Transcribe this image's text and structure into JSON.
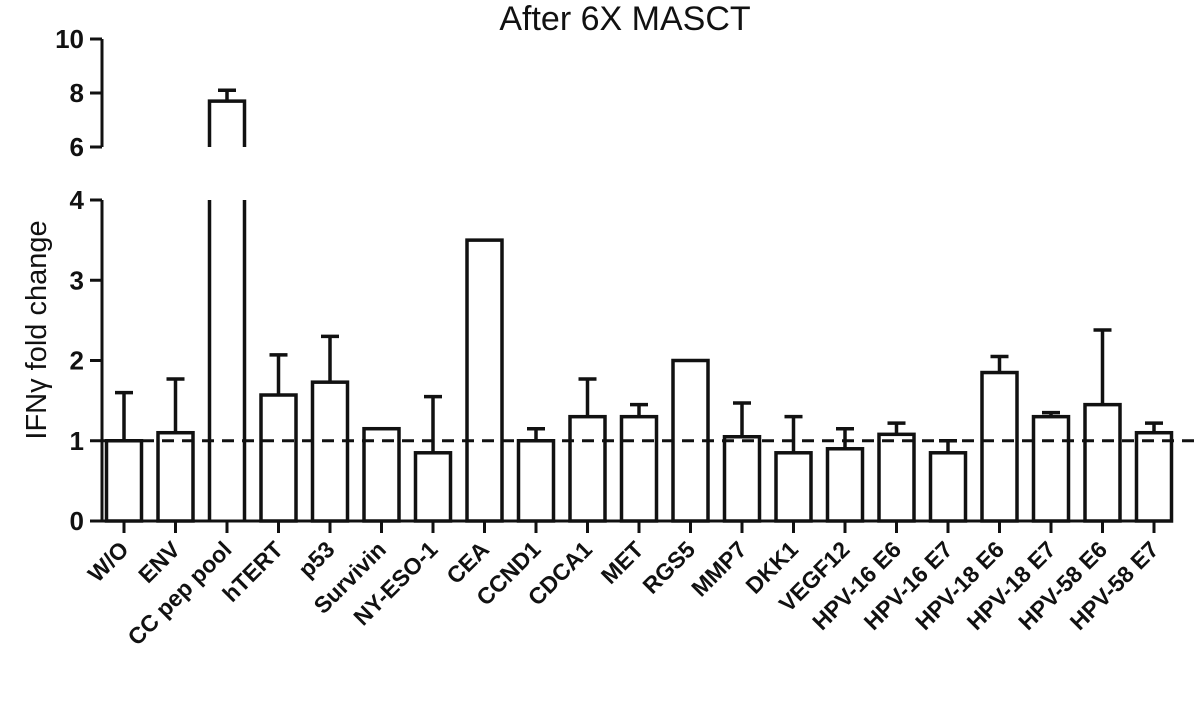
{
  "chart_data": {
    "type": "bar",
    "title": "After 6X MASCT",
    "ylabel": "IFNγ fold change",
    "xlabel": "",
    "categories": [
      "W/O",
      "ENV",
      "CC pep pool",
      "hTERT",
      "p53",
      "Survivin",
      "NY-ESO-1",
      "CEA",
      "CCND1",
      "CDCA1",
      "MET",
      "RGS5",
      "MMP7",
      "DKK1",
      "VEGF12",
      "HPV-16 E6",
      "HPV-16 E7",
      "HPV-18 E6",
      "HPV-18 E7",
      "HPV-58 E6",
      "HPV-58 E7"
    ],
    "values": [
      1.0,
      1.1,
      7.7,
      1.57,
      1.73,
      1.15,
      0.85,
      3.5,
      1.0,
      1.3,
      1.3,
      2.0,
      1.05,
      0.85,
      0.9,
      1.08,
      0.85,
      1.85,
      1.3,
      1.45,
      1.1
    ],
    "error_upper": [
      1.6,
      1.77,
      8.1,
      2.07,
      2.3,
      null,
      1.55,
      null,
      1.15,
      1.77,
      1.45,
      null,
      1.47,
      1.3,
      1.15,
      1.22,
      1.0,
      2.05,
      1.35,
      2.38,
      1.22
    ],
    "reference_line": 1,
    "y_axis_break": {
      "lower_range": [
        0,
        4
      ],
      "upper_range": [
        6,
        10
      ]
    },
    "yticks_lower": [
      "0",
      "1",
      "2",
      "3",
      "4"
    ],
    "yticks_upper": [
      "6",
      "8",
      "10"
    ],
    "grid": false,
    "legend": "none"
  }
}
